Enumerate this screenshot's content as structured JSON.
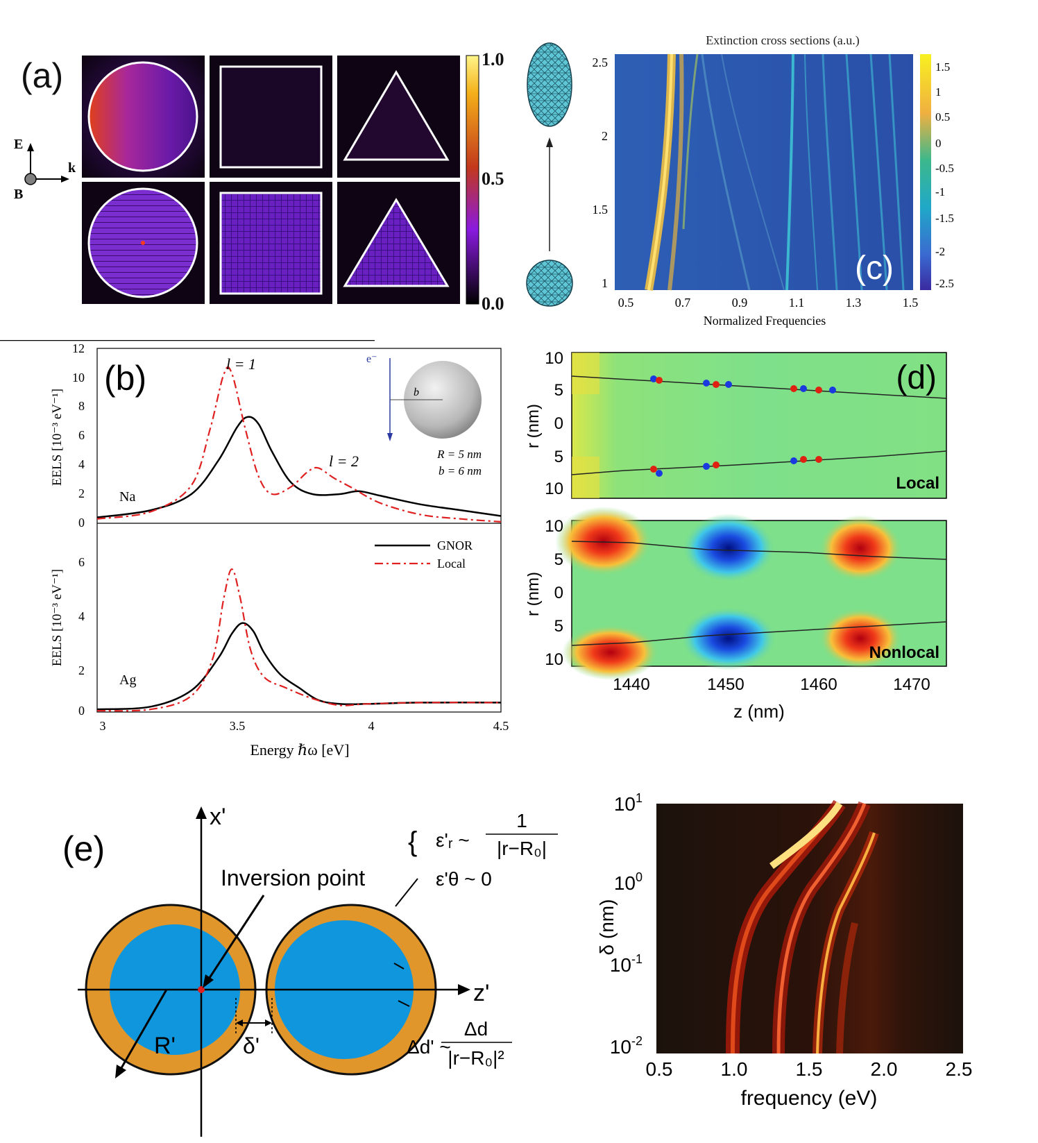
{
  "panels": {
    "a": {
      "label": "(a)",
      "axes": {
        "e": "E",
        "k": "k",
        "b": "B"
      },
      "colorbar": {
        "ticks": [
          "1.0",
          "0.5",
          "0.0"
        ]
      },
      "shapes": [
        "circle",
        "square",
        "triangle"
      ]
    },
    "c": {
      "label": "(c)",
      "title": "Extinction cross sections (a.u.)",
      "xlabel": "Normalized Frequencies",
      "xticks": [
        "0.5",
        "0.7",
        "0.9",
        "1.1",
        "1.3",
        "1.5"
      ],
      "yticks": [
        "2.5",
        "2",
        "1.5",
        "1"
      ],
      "colorbar_ticks": [
        "1.5",
        "1",
        "0.5",
        "0",
        "-0.5",
        "-1",
        "-1.5",
        "-2",
        "-2.5"
      ]
    },
    "b": {
      "label": "(b)",
      "top": {
        "ylabel": "EELS [10⁻³ eV⁻¹]",
        "yticks": [
          "12",
          "10",
          "8",
          "6",
          "4",
          "2",
          "0"
        ],
        "material": "Na",
        "peak1": "l = 1",
        "peak2": "l = 2",
        "electron": "e⁻",
        "impact": "b",
        "radius": "R = 5 nm",
        "impact_value": "b = 6 nm"
      },
      "bottom": {
        "ylabel": "EELS [10⁻³ eV⁻¹]",
        "yticks": [
          "6",
          "4",
          "2",
          "0"
        ],
        "material": "Ag",
        "legend": [
          "GNOR",
          "Local"
        ]
      },
      "xticks": [
        "3",
        "3.5",
        "4",
        "4.5"
      ],
      "xlabel": "Energy ℏω [eV]"
    },
    "d": {
      "label": "(d)",
      "ylabel": "r (nm)",
      "yticks": [
        "10",
        "5",
        "0",
        "5",
        "10"
      ],
      "top_tag": "Local",
      "bottom_tag": "Nonlocal",
      "xticks": [
        "1440",
        "1450",
        "1460",
        "1470"
      ],
      "xlabel": "z (nm)"
    },
    "e": {
      "label": "(e)",
      "x_axis": "x'",
      "z_axis": "z'",
      "inversion": "Inversion point",
      "radius": "R'",
      "gap": "δ'",
      "eps_r": "ε'ᵣ ~",
      "eps_r_num": "1",
      "eps_r_den": "|r−R₀|",
      "eps_t": "ε'θ ~ 0",
      "dd": "Δd' ~",
      "dd_num": "Δd",
      "dd_den": "|r−R₀|²"
    },
    "f": {
      "ylabel": "δ (nm)",
      "xlabel": "frequency (eV)",
      "xticks": [
        "0.5",
        "1.0",
        "1.5",
        "2.0",
        "2.5"
      ],
      "yticks": [
        {
          "base": "10",
          "exp": "1"
        },
        {
          "base": "10",
          "exp": "0"
        },
        {
          "base": "10",
          "exp": "-1"
        },
        {
          "base": "10",
          "exp": "-2"
        }
      ]
    }
  },
  "chart_data": [
    {
      "type": "line",
      "title": "Na",
      "xlabel": "Energy ℏω [eV]",
      "ylabel": "EELS [10^-3 eV^-1]",
      "xlim": [
        3,
        4.5
      ],
      "ylim": [
        0,
        12
      ],
      "series": [
        {
          "name": "GNOR",
          "x": [
            3.0,
            3.2,
            3.35,
            3.45,
            3.52,
            3.56,
            3.6,
            3.65,
            3.72,
            3.8,
            3.9,
            3.97,
            4.05,
            4.2,
            4.35,
            4.5
          ],
          "values": [
            0.4,
            0.9,
            2.0,
            4.3,
            6.6,
            7.3,
            6.8,
            4.9,
            2.8,
            2.0,
            2.0,
            2.2,
            1.9,
            1.3,
            0.9,
            0.5
          ]
        },
        {
          "name": "Local",
          "x": [
            3.0,
            3.2,
            3.35,
            3.42,
            3.47,
            3.5,
            3.55,
            3.6,
            3.65,
            3.72,
            3.78,
            3.82,
            3.88,
            3.95,
            4.05,
            4.2,
            4.35,
            4.5
          ],
          "values": [
            0.3,
            0.8,
            2.6,
            6.5,
            10.2,
            10.3,
            6.5,
            3.2,
            2.0,
            2.5,
            3.5,
            3.8,
            3.1,
            2.4,
            1.4,
            0.6,
            0.3,
            0.1
          ]
        }
      ]
    },
    {
      "type": "line",
      "title": "Ag",
      "xlabel": "Energy ℏω [eV]",
      "ylabel": "EELS [10^-3 eV^-1]",
      "xlim": [
        3,
        4.5
      ],
      "ylim": [
        0,
        7
      ],
      "series": [
        {
          "name": "GNOR",
          "x": [
            3.0,
            3.2,
            3.35,
            3.45,
            3.5,
            3.54,
            3.58,
            3.62,
            3.68,
            3.75,
            3.82,
            3.9,
            4.0,
            4.2,
            4.5
          ],
          "values": [
            0.1,
            0.2,
            0.8,
            2.0,
            2.9,
            3.3,
            3.0,
            2.2,
            1.4,
            0.9,
            0.45,
            0.3,
            0.3,
            0.35,
            0.35
          ]
        },
        {
          "name": "Local",
          "x": [
            3.0,
            3.2,
            3.35,
            3.43,
            3.47,
            3.5,
            3.53,
            3.57,
            3.62,
            3.7,
            3.8,
            3.9,
            4.0,
            4.2,
            4.5
          ],
          "values": [
            0.05,
            0.1,
            0.6,
            2.0,
            4.2,
            5.3,
            4.3,
            2.3,
            1.3,
            0.9,
            0.5,
            0.25,
            0.3,
            0.35,
            0.35
          ]
        }
      ]
    }
  ]
}
